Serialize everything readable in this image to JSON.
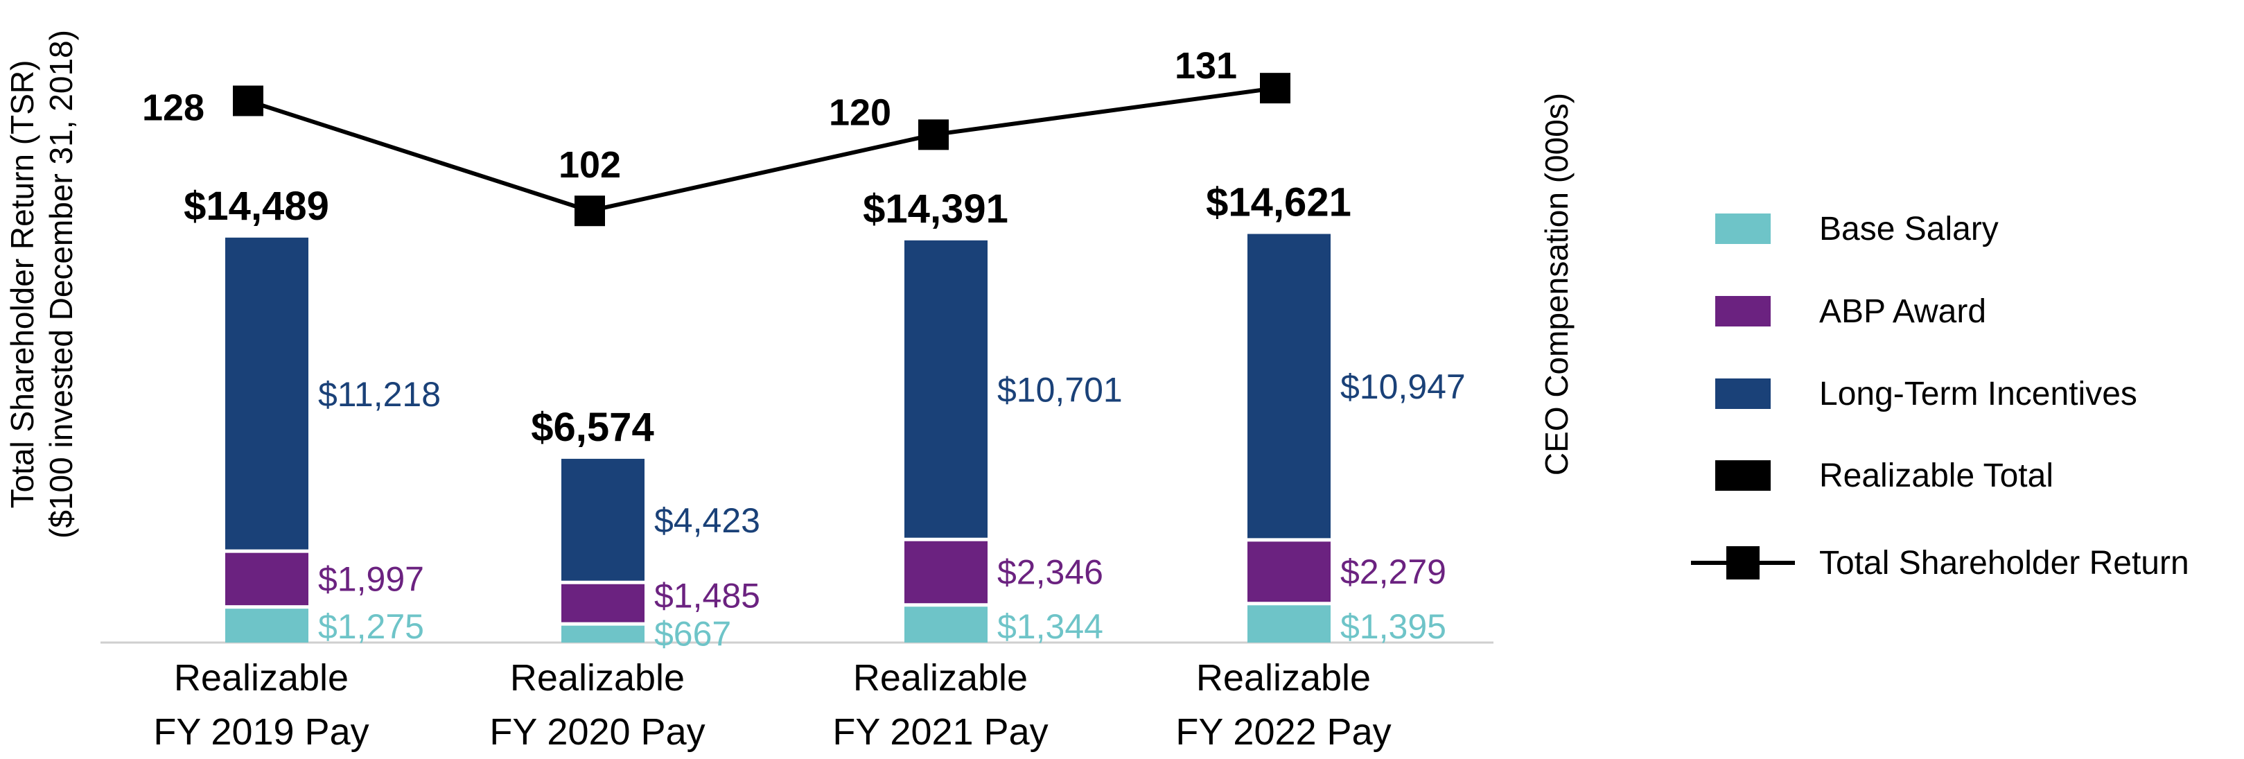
{
  "chart_data": {
    "type": "bar",
    "stacked": true,
    "categories": [
      "Realizable FY 2019 Pay",
      "Realizable FY 2020 Pay",
      "Realizable FY 2021 Pay",
      "Realizable FY 2022 Pay"
    ],
    "category_lines": [
      [
        "Realizable",
        "FY 2019 Pay"
      ],
      [
        "Realizable",
        "FY 2020 Pay"
      ],
      [
        "Realizable",
        "FY 2021 Pay"
      ],
      [
        "Realizable",
        "FY 2022 Pay"
      ]
    ],
    "series": [
      {
        "name": "Base Salary",
        "color": "#6ec4c8",
        "values": [
          1275,
          667,
          1344,
          1395
        ],
        "labels": [
          "$1,275",
          "$667",
          "$1,344",
          "$1,395"
        ]
      },
      {
        "name": "ABP Award",
        "color": "#6b2280",
        "values": [
          1997,
          1485,
          2346,
          2279
        ],
        "labels": [
          "$1,997",
          "$1,485",
          "$2,346",
          "$2,279"
        ]
      },
      {
        "name": "Long-Term Incentives",
        "color": "#1a4178",
        "values": [
          11218,
          4423,
          10701,
          10947
        ],
        "labels": [
          "$11,218",
          "$4,423",
          "$10,701",
          "$10,947"
        ]
      }
    ],
    "totals": {
      "name": "Realizable Total",
      "color": "#000000",
      "values": [
        14489,
        6574,
        14391,
        14621
      ],
      "labels": [
        "$14,489",
        "$6,574",
        "$14,391",
        "$14,621"
      ]
    },
    "line_series": {
      "name": "Total Shareholder Return",
      "color": "#000000",
      "values": [
        128,
        102,
        120,
        131
      ],
      "labels": [
        "128",
        "102",
        "120",
        "131"
      ]
    },
    "left_axis_title": [
      "Total Shareholder Return (TSR)",
      "($100 invested December 31, 2018)"
    ],
    "right_axis_title": "CEO Compensation (000s)",
    "bar_ylim": [
      0,
      22000
    ],
    "line_ylim": [
      0,
      142
    ],
    "legend_position": "right",
    "legend": [
      {
        "label": "Base Salary",
        "kind": "box",
        "color": "#6ec4c8"
      },
      {
        "label": "ABP Award",
        "kind": "box",
        "color": "#6b2280"
      },
      {
        "label": "Long-Term Incentives",
        "kind": "box",
        "color": "#1a4178"
      },
      {
        "label": "Realizable Total",
        "kind": "box",
        "color": "#000000"
      },
      {
        "label": "Total Shareholder Return",
        "kind": "line-marker",
        "color": "#000000"
      }
    ]
  }
}
